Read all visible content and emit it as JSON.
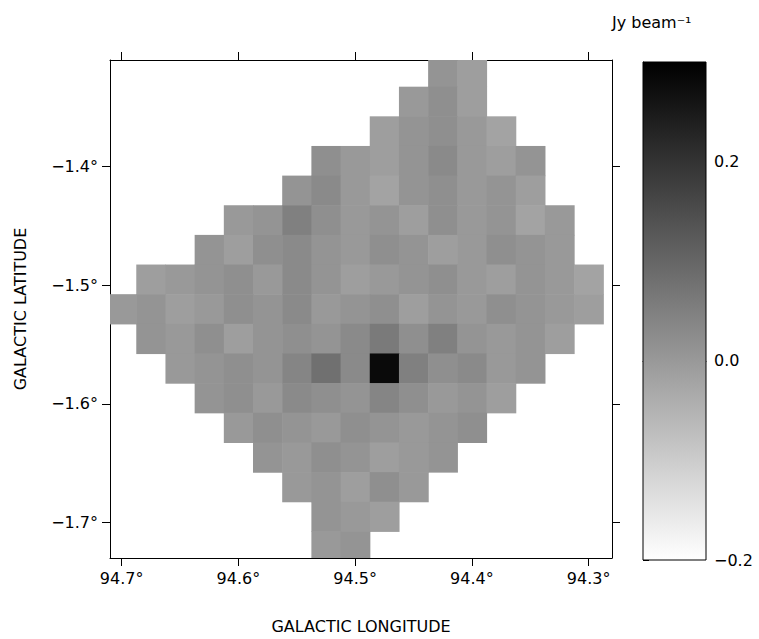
{
  "chart_data": {
    "type": "heatmap",
    "x_label": "GALACTIC LONGITUDE",
    "y_label": "GALACTIC LATITUDE",
    "x": [
      94.7,
      94.675,
      94.65,
      94.625,
      94.6,
      94.575,
      94.55,
      94.525,
      94.5,
      94.475,
      94.45,
      94.425,
      94.4,
      94.375,
      94.35,
      94.325,
      94.3
    ],
    "y": [
      -1.32,
      -1.345,
      -1.37,
      -1.395,
      -1.42,
      -1.445,
      -1.47,
      -1.495,
      -1.52,
      -1.545,
      -1.57,
      -1.595,
      -1.62,
      -1.645,
      -1.67,
      -1.695,
      -1.72
    ],
    "values": [
      [
        null,
        null,
        null,
        null,
        null,
        null,
        null,
        null,
        null,
        null,
        null,
        0.01,
        -0.01,
        null,
        null,
        null,
        null
      ],
      [
        null,
        null,
        null,
        null,
        null,
        null,
        null,
        null,
        null,
        null,
        0.0,
        0.02,
        -0.01,
        null,
        null,
        null,
        null
      ],
      [
        null,
        null,
        null,
        null,
        null,
        null,
        null,
        null,
        null,
        -0.01,
        0.01,
        0.02,
        0.0,
        -0.02,
        null,
        null,
        null
      ],
      [
        null,
        null,
        null,
        null,
        null,
        null,
        null,
        0.02,
        0.0,
        -0.01,
        0.01,
        0.03,
        0.0,
        -0.01,
        0.01,
        null,
        null
      ],
      [
        null,
        null,
        null,
        null,
        null,
        null,
        0.01,
        0.03,
        0.0,
        -0.02,
        0.01,
        0.02,
        0.0,
        0.01,
        -0.01,
        null,
        null
      ],
      [
        null,
        null,
        null,
        null,
        0.0,
        0.01,
        0.05,
        0.02,
        0.0,
        0.01,
        -0.01,
        0.02,
        0.0,
        0.01,
        -0.02,
        0.0,
        null
      ],
      [
        null,
        null,
        null,
        0.01,
        -0.01,
        0.02,
        0.03,
        0.01,
        0.0,
        0.02,
        0.01,
        -0.01,
        0.0,
        0.02,
        0.01,
        0.0,
        null
      ],
      [
        null,
        -0.01,
        0.0,
        0.01,
        0.02,
        0.0,
        0.03,
        0.01,
        -0.01,
        0.0,
        0.01,
        0.02,
        0.0,
        -0.01,
        0.01,
        0.0,
        -0.02
      ],
      [
        0.0,
        0.01,
        -0.01,
        0.0,
        0.02,
        0.01,
        0.03,
        0.0,
        0.01,
        0.02,
        -0.01,
        0.01,
        0.0,
        0.02,
        0.01,
        0.0,
        -0.01
      ],
      [
        null,
        0.01,
        0.0,
        0.02,
        -0.01,
        0.01,
        0.02,
        0.01,
        0.03,
        0.06,
        0.02,
        0.05,
        0.01,
        0.0,
        0.01,
        -0.01,
        null
      ],
      [
        null,
        null,
        0.0,
        0.01,
        0.02,
        0.01,
        0.04,
        0.08,
        0.03,
        0.28,
        0.05,
        0.02,
        0.03,
        0.0,
        0.01,
        null,
        null
      ],
      [
        null,
        null,
        null,
        0.01,
        0.02,
        0.0,
        0.03,
        0.02,
        0.01,
        0.04,
        0.02,
        0.0,
        0.01,
        -0.01,
        null,
        null,
        null
      ],
      [
        null,
        null,
        null,
        null,
        0.0,
        0.02,
        0.01,
        0.0,
        0.02,
        0.01,
        0.0,
        0.01,
        0.02,
        null,
        null,
        null,
        null
      ],
      [
        null,
        null,
        null,
        null,
        null,
        0.01,
        0.0,
        0.02,
        0.01,
        -0.01,
        0.0,
        0.01,
        null,
        null,
        null,
        null,
        null
      ],
      [
        null,
        null,
        null,
        null,
        null,
        null,
        0.0,
        0.01,
        -0.01,
        0.02,
        0.0,
        null,
        null,
        null,
        null,
        null,
        null
      ],
      [
        null,
        null,
        null,
        null,
        null,
        null,
        null,
        0.01,
        0.0,
        -0.01,
        null,
        null,
        null,
        null,
        null,
        null,
        null
      ],
      [
        null,
        null,
        null,
        null,
        null,
        null,
        null,
        0.0,
        0.01,
        null,
        null,
        null,
        null,
        null,
        null,
        null,
        null
      ]
    ],
    "xlim": [
      94.71,
      94.28
    ],
    "ylim": [
      -1.73,
      -1.31
    ],
    "xticks": [
      {
        "value": 94.7,
        "label": "94.7°"
      },
      {
        "value": 94.6,
        "label": "94.6°"
      },
      {
        "value": 94.5,
        "label": "94.5°"
      },
      {
        "value": 94.4,
        "label": "94.4°"
      },
      {
        "value": 94.3,
        "label": "94.3°"
      }
    ],
    "yticks": [
      {
        "value": -1.4,
        "label": "−1.4°"
      },
      {
        "value": -1.5,
        "label": "−1.5°"
      },
      {
        "value": -1.6,
        "label": "−1.6°"
      },
      {
        "value": -1.7,
        "label": "−1.7°"
      }
    ],
    "colorbar": {
      "label": "Jy beam⁻¹",
      "range": [
        -0.2,
        0.3
      ],
      "ticks": [
        {
          "value": -0.2,
          "label": "−0.2"
        },
        {
          "value": 0,
          "label": "0.0"
        },
        {
          "value": 0.2,
          "label": "0.2"
        }
      ],
      "colors": [
        "#ffffff",
        "#000000"
      ]
    }
  }
}
